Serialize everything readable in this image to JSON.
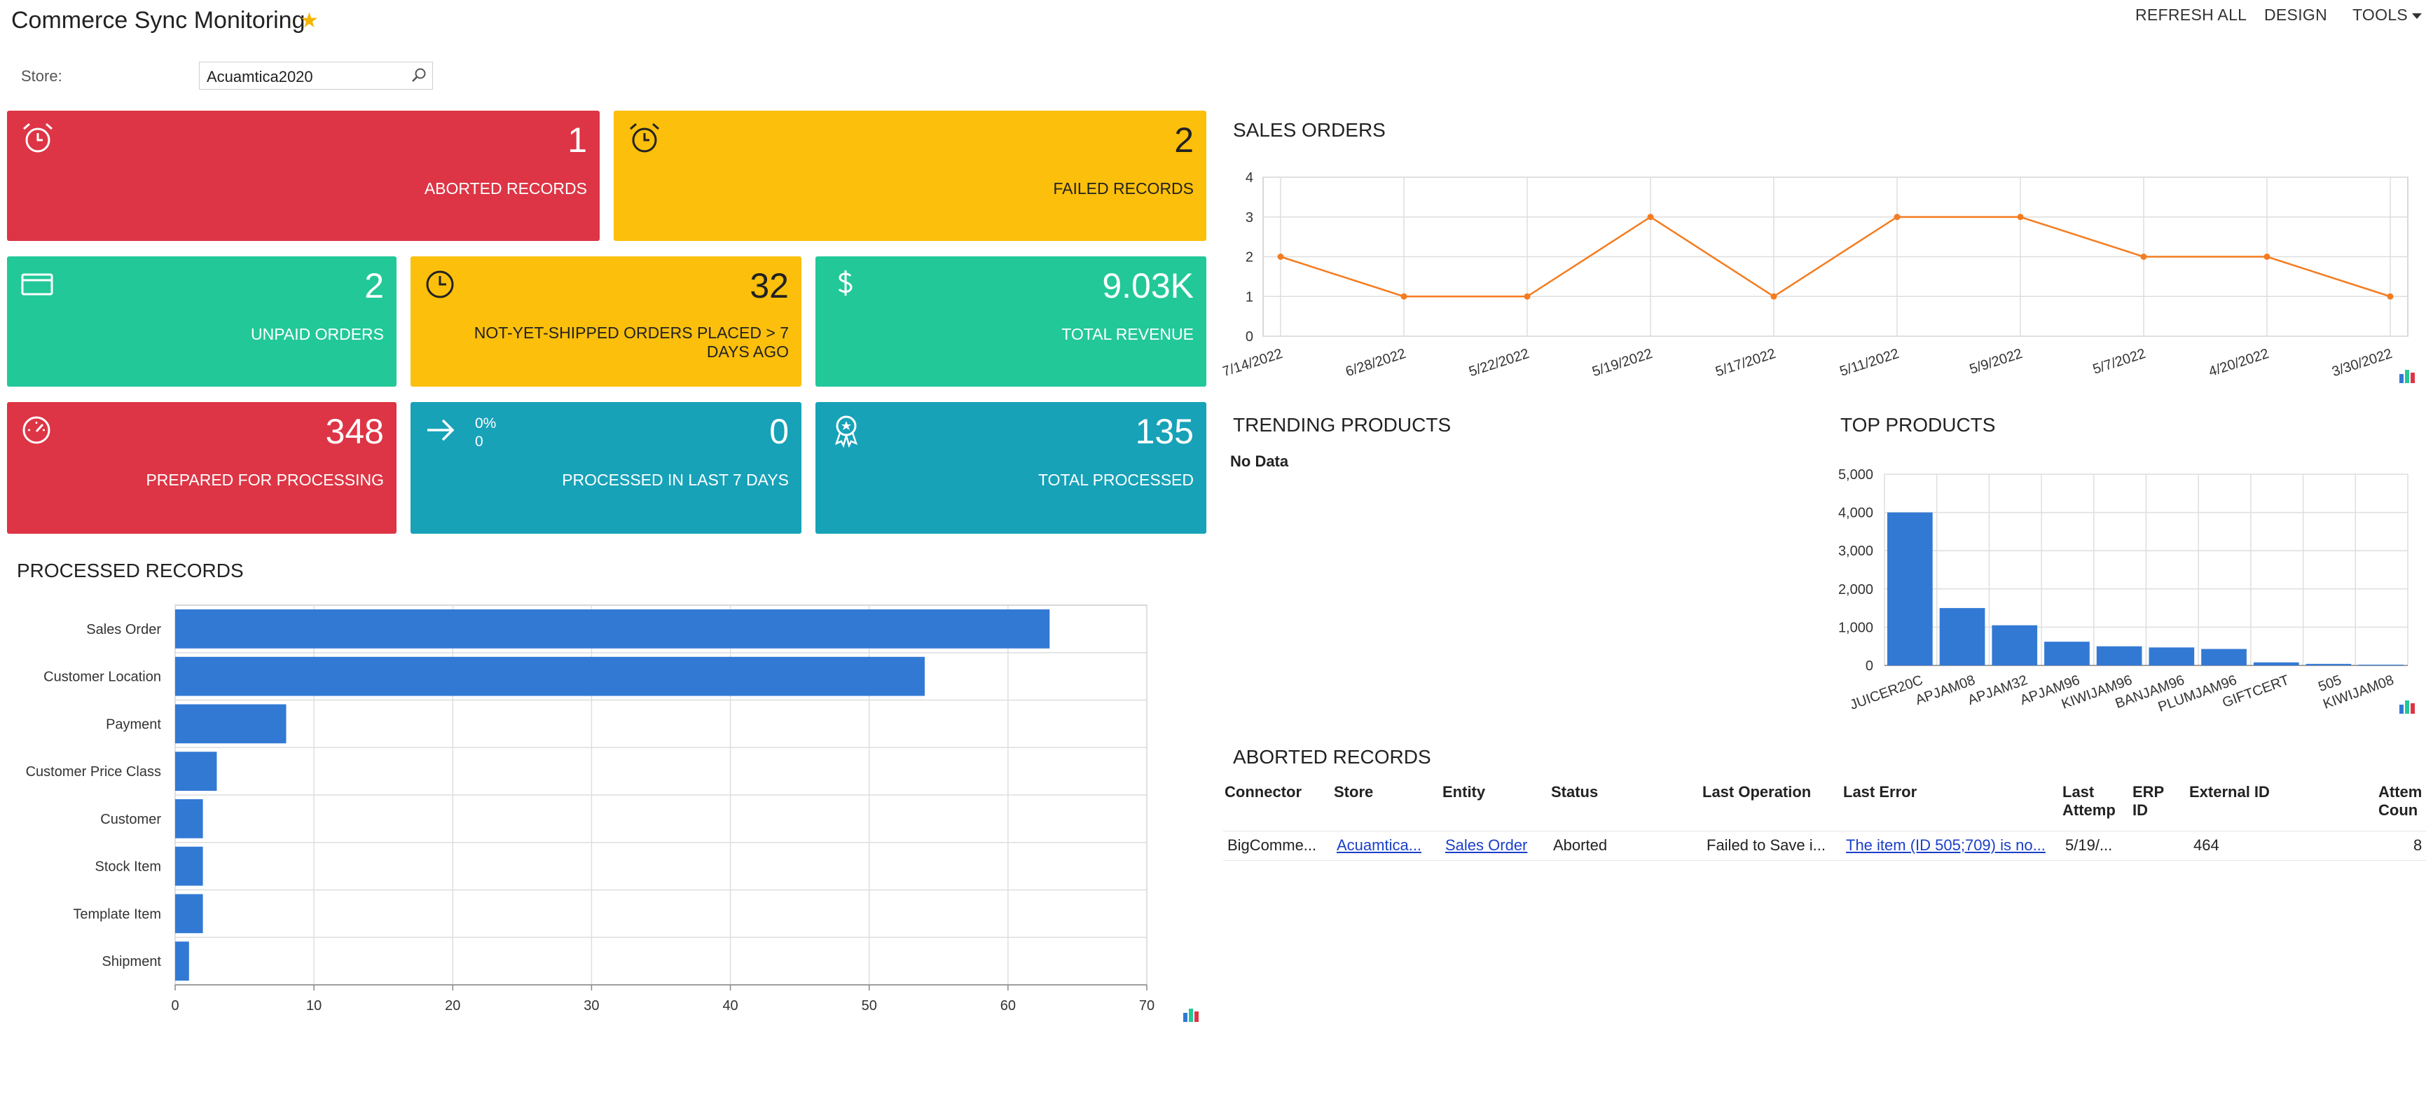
{
  "header": {
    "title": "Commerce Sync Monitoring",
    "refresh_all": "REFRESH ALL",
    "design": "DESIGN",
    "tools": "TOOLS"
  },
  "filter": {
    "store_label": "Store:",
    "store_value": "Acuamtica2020"
  },
  "tiles": {
    "aborted": {
      "value": "1",
      "label": "ABORTED RECORDS",
      "icon": "alarm-clock-icon"
    },
    "failed": {
      "value": "2",
      "label": "FAILED RECORDS",
      "icon": "alarm-clock-icon"
    },
    "unpaid": {
      "value": "2",
      "label": "UNPAID ORDERS",
      "icon": "credit-card-icon"
    },
    "not_shipped": {
      "value": "32",
      "label_line1": "NOT-YET-SHIPPED ORDERS PLACED > 7",
      "label_line2": "DAYS AGO",
      "icon": "clock-icon"
    },
    "revenue": {
      "value": "9.03K",
      "label": "TOTAL REVENUE",
      "icon": "dollar-icon"
    },
    "prepared": {
      "value": "348",
      "label": "PREPARED FOR PROCESSING",
      "icon": "speedometer-icon"
    },
    "processed7": {
      "value": "0",
      "label": "PROCESSED IN LAST 7 DAYS",
      "icon": "arrow-right-icon",
      "mini_percent": "0%",
      "mini_value": "0"
    },
    "total_processed": {
      "value": "135",
      "label": "TOTAL PROCESSED",
      "icon": "award-icon"
    }
  },
  "colors": {
    "red": "#dd3545",
    "yellow": "#fbbf0c",
    "green": "#22c898",
    "teal": "#17a2b8",
    "bar": "#3279d4",
    "line": "#f47c20",
    "link": "#1a3fc8",
    "star": "#f4b400"
  },
  "sections": {
    "sales_orders": "SALES ORDERS",
    "trending": "TRENDING PRODUCTS",
    "trending_empty": "No Data",
    "top_products": "TOP PRODUCTS",
    "processed_records": "PROCESSED RECORDS",
    "aborted_records": "ABORTED RECORDS"
  },
  "chart_data": [
    {
      "id": "sales_orders",
      "type": "line",
      "x": [
        "7/14/2022",
        "6/28/2022",
        "5/22/2022",
        "5/19/2022",
        "5/17/2022",
        "5/11/2022",
        "5/9/2022",
        "5/7/2022",
        "4/20/2022",
        "3/30/2022"
      ],
      "values": [
        2,
        1,
        1,
        3,
        1,
        3,
        3,
        2,
        2,
        1
      ],
      "ylim": [
        0,
        4
      ],
      "yticks": [
        "0",
        "1",
        "2",
        "3",
        "4"
      ],
      "grid": true
    },
    {
      "id": "top_products",
      "type": "bar",
      "categories": [
        "JUICER20C",
        "APJAM08",
        "APJAM32",
        "APJAM96",
        "KIWIJAM96",
        "BANJAM96",
        "PLUMJAM96",
        "GIFTCERT",
        "505",
        "KIWIJAM08"
      ],
      "values": [
        4000,
        1500,
        1050,
        620,
        500,
        470,
        430,
        80,
        40,
        20
      ],
      "ylim": [
        0,
        5000
      ],
      "yticks": [
        "0",
        "1,000",
        "2,000",
        "3,000",
        "4,000",
        "5,000"
      ],
      "grid": true
    },
    {
      "id": "processed_records",
      "type": "bar",
      "orientation": "horizontal",
      "categories": [
        "Sales Order",
        "Customer Location",
        "Payment",
        "Customer Price Class",
        "Customer",
        "Stock Item",
        "Template Item",
        "Shipment"
      ],
      "values": [
        63,
        54,
        8,
        3,
        2,
        2,
        2,
        1
      ],
      "xlim": [
        0,
        70
      ],
      "xticks": [
        "0",
        "10",
        "20",
        "30",
        "40",
        "50",
        "60",
        "70"
      ],
      "grid": true
    }
  ],
  "aborted_table": {
    "columns": [
      "Connector",
      "Store",
      "Entity",
      "Status",
      "Last Operation",
      "Last Error",
      "Last Attemp",
      "ERP ID",
      "External ID",
      "Attem Coun"
    ],
    "col_lines": [
      [
        "Connector"
      ],
      [
        "Store"
      ],
      [
        "Entity"
      ],
      [
        "Status"
      ],
      [
        "Last Operation"
      ],
      [
        "Last Error"
      ],
      [
        "Last",
        "Attemp"
      ],
      [
        "ERP",
        "ID"
      ],
      [
        "External ID"
      ],
      [
        "Attem",
        "Coun"
      ]
    ],
    "rows": [
      [
        "BigComme...",
        "Acuamtica...",
        "Sales Order",
        "Aborted",
        "Failed to Save i...",
        "The item (ID 505;709) is no...",
        "5/19/...",
        "",
        "464",
        "8"
      ]
    ]
  }
}
